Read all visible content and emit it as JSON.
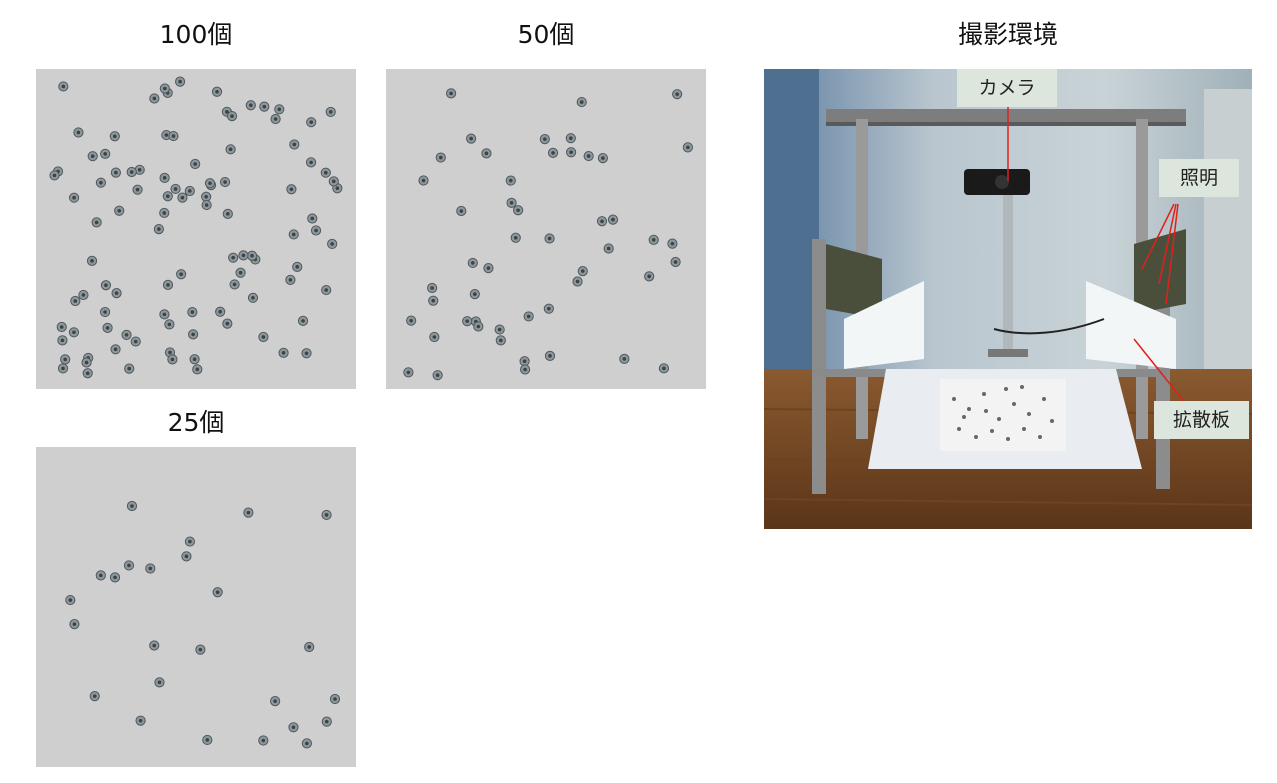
{
  "titles": {
    "panel_100": "100個",
    "panel_50": "50個",
    "panel_25": "25個",
    "setup": "撮影環境"
  },
  "labels": {
    "camera": "カメラ",
    "lighting": "照明",
    "diffuser": "拡散板"
  },
  "colors": {
    "board": "#cfcfcf",
    "annotation_line": "#e0201b",
    "label_bg": "#dde6dc"
  }
}
